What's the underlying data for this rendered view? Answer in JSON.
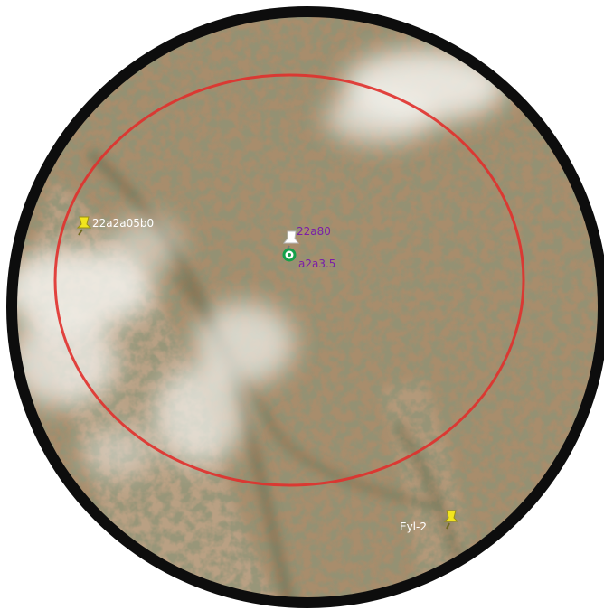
{
  "map": {
    "view": "satellite",
    "frame_color": "#0d0d0d",
    "buffer_ring_color": "#e0302c",
    "markers": [
      {
        "id": "west-pin",
        "icon": "yellow-pushpin-icon",
        "label": "22a2a05b0",
        "label_color": "#ffffff"
      },
      {
        "id": "southeast-pin",
        "icon": "yellow-pushpin-icon",
        "label": "Eyl-2",
        "label_color": "#ffffff"
      },
      {
        "id": "center-pin",
        "icon": "white-pushpin-icon",
        "label": "22a80",
        "label_color": "#7a1ea8"
      },
      {
        "id": "center-target",
        "icon": "green-target-icon",
        "label": "a2a3.5",
        "label_color": "#7a1ea8"
      }
    ]
  }
}
